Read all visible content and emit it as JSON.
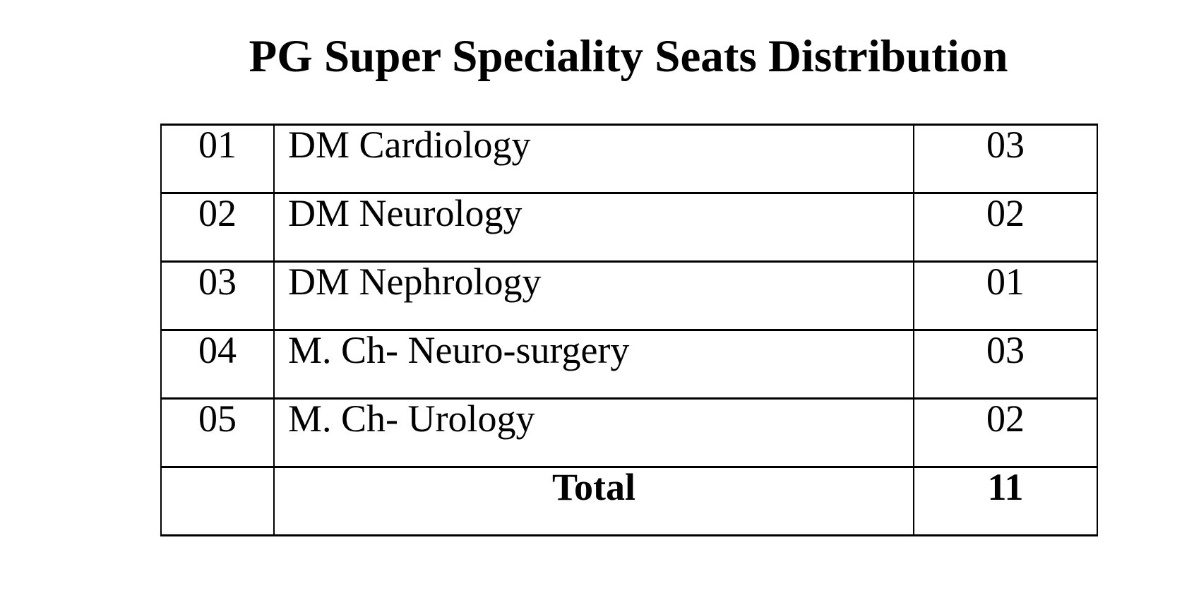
{
  "page": {
    "title": "PG Super Speciality Seats Distribution",
    "background_color": "#ffffff",
    "text_color": "#000000",
    "border_color": "#000000"
  },
  "table": {
    "rows": [
      {
        "sl": "01",
        "speciality": "DM Cardiology",
        "seats": "03"
      },
      {
        "sl": "02",
        "speciality": "DM Neurology",
        "seats": "02"
      },
      {
        "sl": "03",
        "speciality": "DM Nephrology",
        "seats": "01"
      },
      {
        "sl": "04",
        "speciality": "M. Ch- Neuro-surgery",
        "seats": "03"
      },
      {
        "sl": "05",
        "speciality": "M. Ch- Urology",
        "seats": "02"
      }
    ],
    "total_label": "Total",
    "total_value": "11"
  }
}
